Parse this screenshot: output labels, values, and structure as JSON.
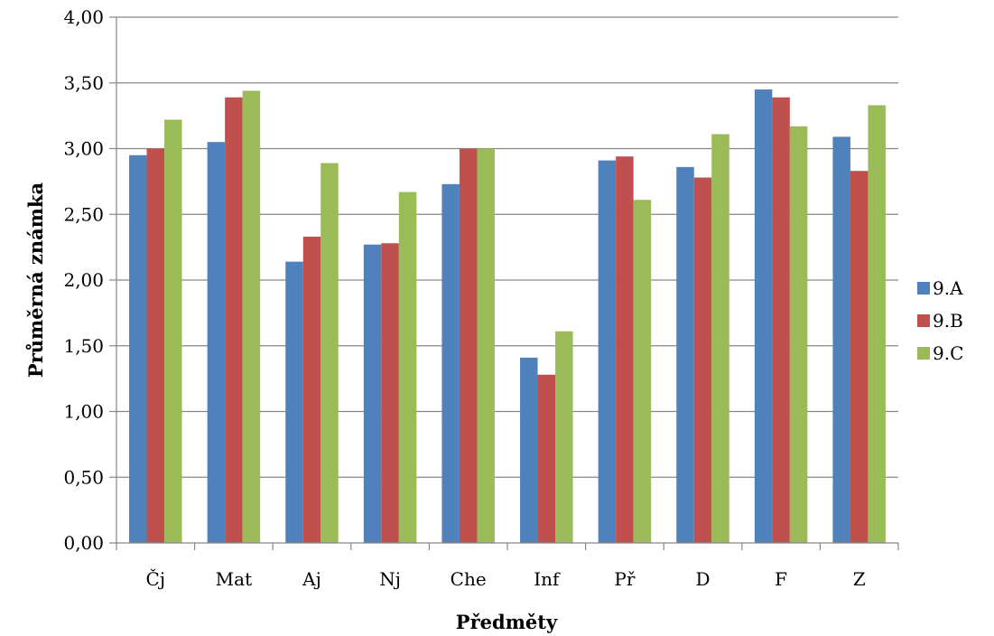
{
  "chart_data": {
    "type": "bar",
    "categories": [
      "Čj",
      "Mat",
      "Aj",
      "Nj",
      "Che",
      "Inf",
      "Př",
      "D",
      "F",
      "Z"
    ],
    "series": [
      {
        "name": "9.A",
        "color": "#4F81BD",
        "values": [
          2.95,
          3.05,
          2.14,
          2.27,
          2.73,
          1.41,
          2.91,
          2.86,
          3.45,
          3.09
        ]
      },
      {
        "name": "9.B",
        "color": "#C0504D",
        "values": [
          3.0,
          3.39,
          2.33,
          2.28,
          3.0,
          1.28,
          2.94,
          2.78,
          3.39,
          2.83
        ]
      },
      {
        "name": "9.C",
        "color": "#9BBB59",
        "values": [
          3.22,
          3.44,
          2.89,
          2.67,
          3.0,
          1.61,
          2.61,
          3.11,
          3.17,
          3.33
        ]
      }
    ],
    "xlabel": "Předměty",
    "ylabel": "Průměrná známka",
    "ylim": [
      0,
      4
    ],
    "yticks": [
      "0,00",
      "0,50",
      "1,00",
      "1,50",
      "2,00",
      "2,50",
      "3,00",
      "3,50",
      "4,00"
    ],
    "grid": true,
    "legend_position": "right"
  }
}
